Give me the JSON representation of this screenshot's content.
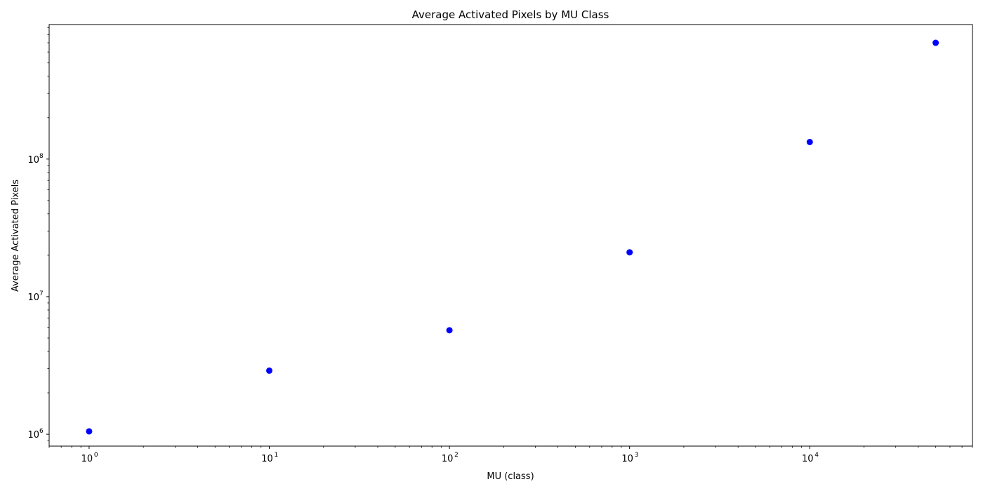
{
  "chart_data": {
    "type": "scatter",
    "title": "Average Activated Pixels by MU Class",
    "xlabel": "MU (class)",
    "ylabel": "Average Activated Pixels",
    "x_scale": "log",
    "y_scale": "log",
    "xlim": [
      0.6,
      80000
    ],
    "ylim": [
      820000,
      950000000
    ],
    "grid": false,
    "legend": "none",
    "marker_color": "#0000ff",
    "x_ticks": [
      {
        "value": 1,
        "base": "10",
        "exp": "0"
      },
      {
        "value": 10,
        "base": "10",
        "exp": "1"
      },
      {
        "value": 100,
        "base": "10",
        "exp": "2"
      },
      {
        "value": 1000,
        "base": "10",
        "exp": "3"
      },
      {
        "value": 10000,
        "base": "10",
        "exp": "4"
      }
    ],
    "y_ticks": [
      {
        "value": 1000000,
        "base": "10",
        "exp": "6"
      },
      {
        "value": 10000000,
        "base": "10",
        "exp": "7"
      },
      {
        "value": 100000000,
        "base": "10",
        "exp": "8"
      }
    ],
    "points": [
      {
        "x": 1,
        "y": 1050000
      },
      {
        "x": 10,
        "y": 2900000
      },
      {
        "x": 100,
        "y": 5700000
      },
      {
        "x": 1000,
        "y": 21000000
      },
      {
        "x": 10000,
        "y": 133000000
      },
      {
        "x": 50000,
        "y": 700000000
      }
    ]
  }
}
